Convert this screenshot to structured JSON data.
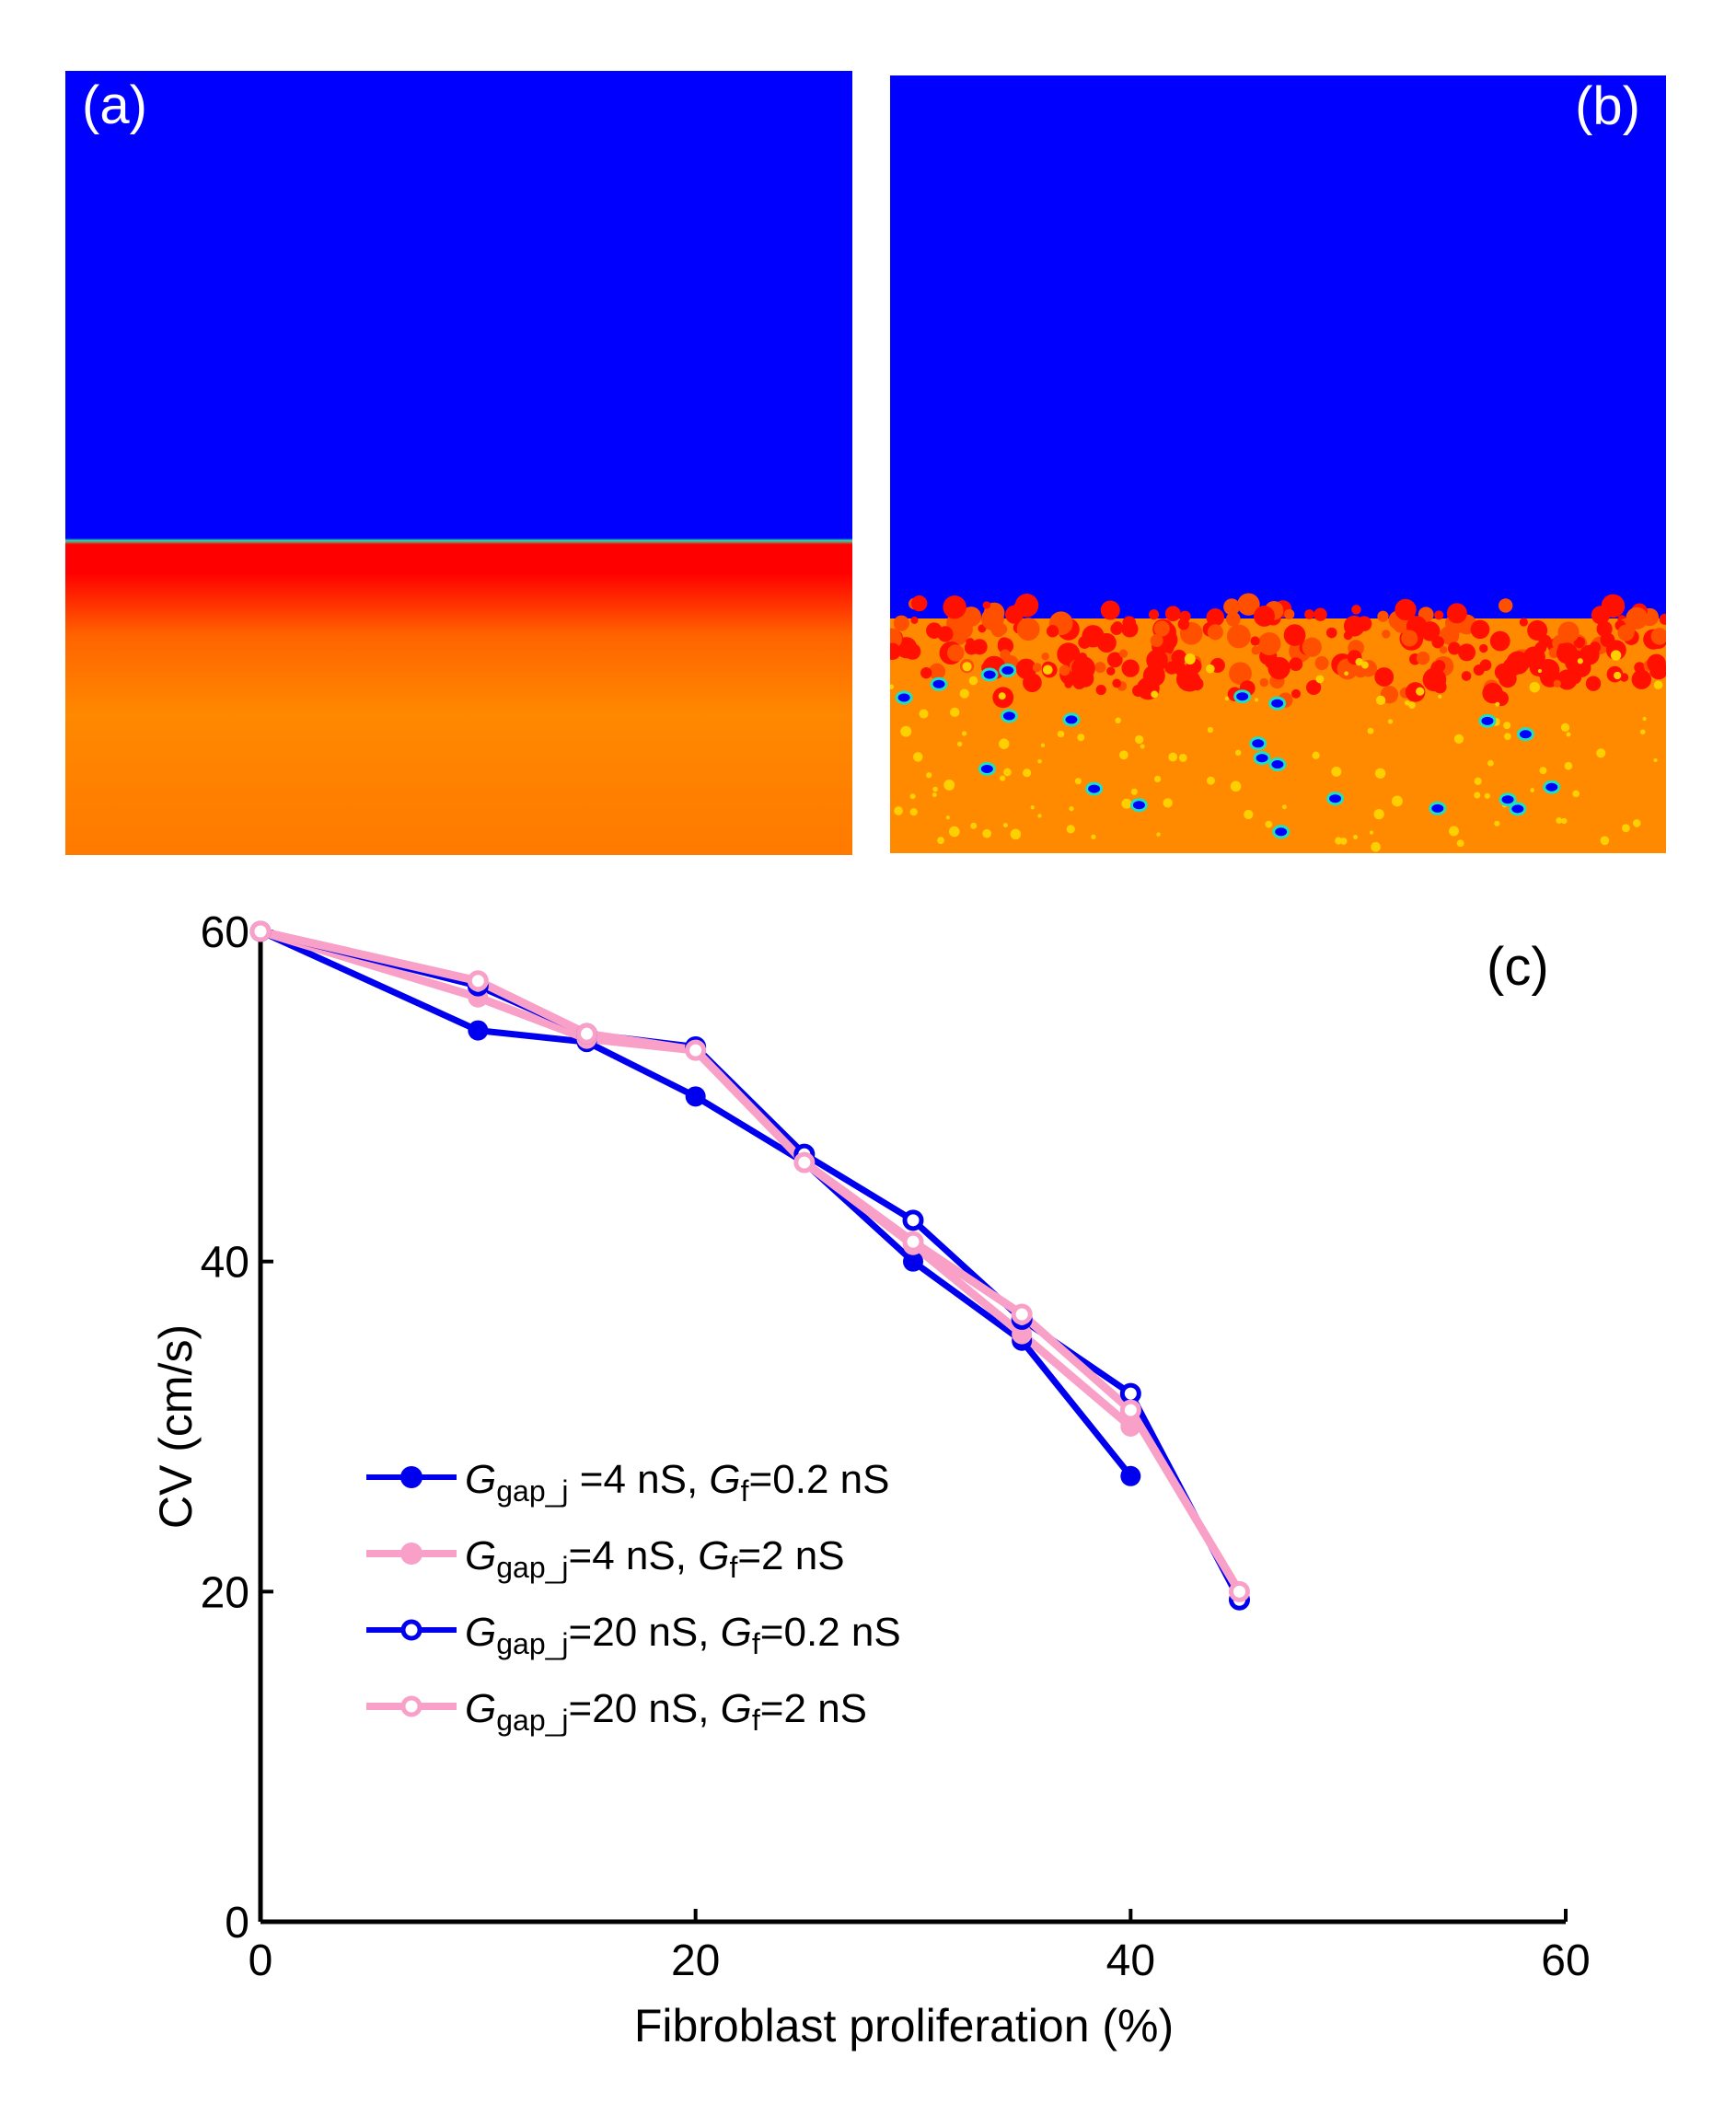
{
  "panels": {
    "a_label": "(a)",
    "b_label": "(b)",
    "c_label": "(c)"
  },
  "colors": {
    "blue": "#0000ee",
    "pink": "#f9a0c8"
  },
  "chart_data": {
    "type": "line",
    "xlabel": "Fibroblast proliferation (%)",
    "ylabel": "CV (cm/s)",
    "xlim": [
      0,
      60
    ],
    "ylim": [
      0,
      60
    ],
    "xticks": [
      "0",
      "20",
      "40",
      "60"
    ],
    "yticks": [
      "0",
      "20",
      "40",
      "60"
    ],
    "xtick_values": [
      0,
      20,
      40,
      60
    ],
    "ytick_values": [
      0,
      20,
      40,
      60
    ],
    "grid": false,
    "legend_position": "center-left",
    "series": [
      {
        "name": "Ggap_j=4 nS, Gf=0.2 nS",
        "legend": {
          "g1": "G",
          "sub1": "gap_j",
          "mid": " =4 nS, ",
          "g2": "G",
          "sub2": "f",
          "end": "=0.2 nS"
        },
        "color": "#0000ee",
        "marker": "filled",
        "x": [
          0,
          10,
          15,
          20,
          25,
          30,
          35,
          40
        ],
        "y": [
          60,
          54,
          53.3,
          50,
          46,
          40,
          35.2,
          27
        ]
      },
      {
        "name": "Ggap_j=4 nS, Gf=2 nS",
        "legend": {
          "g1": "G",
          "sub1": "gap_j",
          "mid": "=4 nS, ",
          "g2": "G",
          "sub2": "f",
          "end": "=2 nS"
        },
        "color": "#f9a0c8",
        "marker": "filled",
        "x": [
          0,
          10,
          15,
          20,
          25,
          30,
          35,
          40
        ],
        "y": [
          60,
          56,
          53.5,
          52.8,
          46,
          41,
          35.6,
          30
        ]
      },
      {
        "name": "Ggap_j=20 nS, Gf=0.2 nS",
        "legend": {
          "g1": "G",
          "sub1": "gap_j",
          "mid": "=20 nS, ",
          "g2": "G",
          "sub2": "f",
          "end": "=0.2 nS"
        },
        "color": "#0000ee",
        "marker": "open",
        "x": [
          0,
          10,
          15,
          20,
          25,
          30,
          35,
          40,
          45
        ],
        "y": [
          60,
          56.7,
          53.8,
          53,
          46.5,
          42.5,
          36.5,
          32,
          19.5
        ]
      },
      {
        "name": "Ggap_j=20 nS, Gf=2 nS",
        "legend": {
          "g1": "G",
          "sub1": "gap_j",
          "mid": "=20 nS, ",
          "g2": "G",
          "sub2": "f",
          "end": "=2 nS"
        },
        "color": "#f9a0c8",
        "marker": "open",
        "x": [
          0,
          10,
          15,
          20,
          25,
          30,
          35,
          40,
          45
        ],
        "y": [
          60,
          57,
          53.8,
          52.8,
          46,
          41.2,
          36.8,
          31,
          20
        ]
      }
    ]
  }
}
